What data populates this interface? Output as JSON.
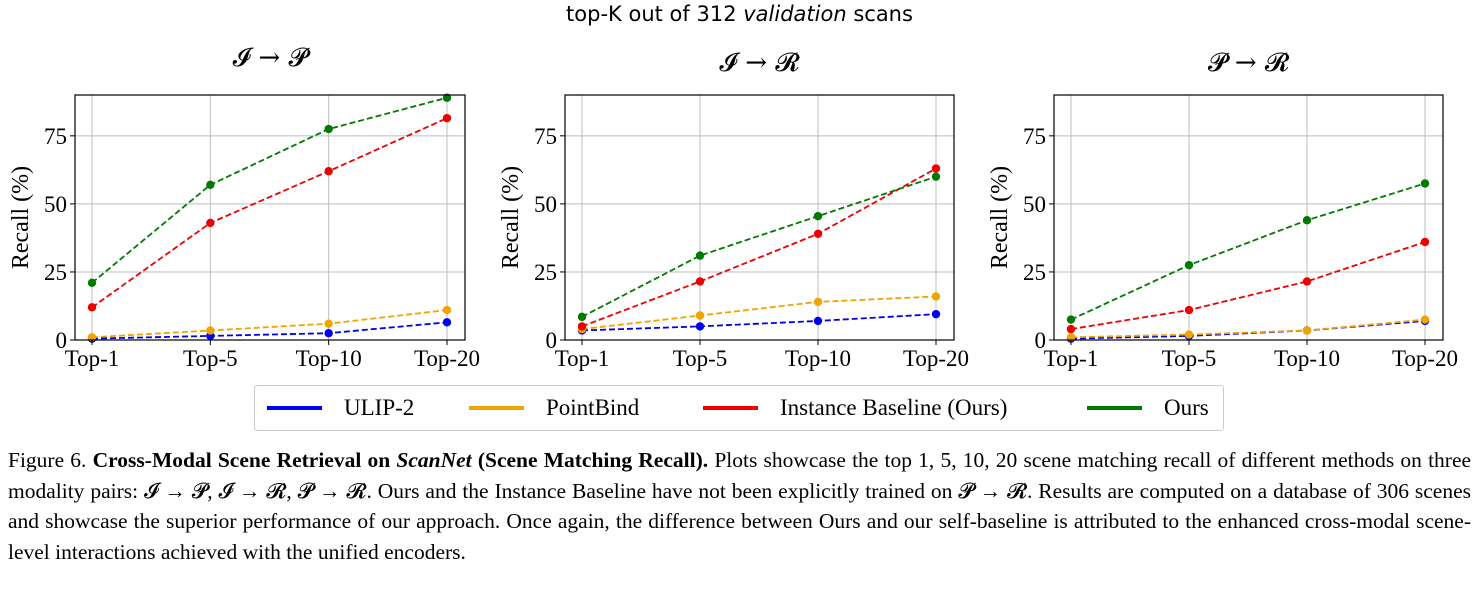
{
  "main_title": {
    "prefix": "top-K out of 312",
    "emph": "validation",
    "suffix": "scans"
  },
  "legend": [
    {
      "label": "ULIP-2",
      "color": "#0000ee"
    },
    {
      "label": "PointBind",
      "color": "#f0a400"
    },
    {
      "label": "Instance Baseline (Ours)",
      "color": "#ee0000"
    },
    {
      "label": "Ours",
      "color": "#007a00"
    }
  ],
  "chart_data": [
    {
      "type": "line",
      "title": "𝓘 → 𝓟",
      "xlabel": "",
      "ylabel": "Recall (%)",
      "categories": [
        "Top-1",
        "Top-5",
        "Top-10",
        "Top-20"
      ],
      "yticks": [
        0,
        25,
        50,
        75
      ],
      "ylim": [
        0,
        90
      ],
      "grid": true,
      "series": [
        {
          "name": "ULIP-2",
          "values": [
            0.5,
            1.5,
            2.5,
            6.5
          ]
        },
        {
          "name": "PointBind",
          "values": [
            1,
            3.5,
            6,
            11
          ]
        },
        {
          "name": "Instance Baseline (Ours)",
          "values": [
            12,
            43,
            62,
            81.5
          ]
        },
        {
          "name": "Ours",
          "values": [
            21,
            57,
            77.5,
            89
          ]
        }
      ]
    },
    {
      "type": "line",
      "title": "𝓘 → 𝓡",
      "xlabel": "",
      "ylabel": "Recall (%)",
      "categories": [
        "Top-1",
        "Top-5",
        "Top-10",
        "Top-20"
      ],
      "yticks": [
        0,
        25,
        50,
        75
      ],
      "ylim": [
        0,
        90
      ],
      "grid": true,
      "series": [
        {
          "name": "ULIP-2",
          "values": [
            3.5,
            5,
            7,
            9.5
          ]
        },
        {
          "name": "PointBind",
          "values": [
            4,
            9,
            14,
            16
          ]
        },
        {
          "name": "Instance Baseline (Ours)",
          "values": [
            5,
            21.5,
            39,
            63
          ]
        },
        {
          "name": "Ours",
          "values": [
            8.5,
            31,
            45.5,
            60
          ]
        }
      ]
    },
    {
      "type": "line",
      "title": "𝓟 → 𝓡",
      "xlabel": "",
      "ylabel": "Recall (%)",
      "categories": [
        "Top-1",
        "Top-5",
        "Top-10",
        "Top-20"
      ],
      "yticks": [
        0,
        25,
        50,
        75
      ],
      "ylim": [
        0,
        90
      ],
      "grid": true,
      "series": [
        {
          "name": "ULIP-2",
          "values": [
            0.5,
            1.5,
            3.5,
            7
          ]
        },
        {
          "name": "PointBind",
          "values": [
            1,
            2,
            3.5,
            7.5
          ]
        },
        {
          "name": "Instance Baseline (Ours)",
          "values": [
            4,
            11,
            21.5,
            36
          ]
        },
        {
          "name": "Ours",
          "values": [
            7.5,
            27.5,
            44,
            57.5
          ]
        }
      ]
    }
  ],
  "caption": {
    "fig": "Figure 6.",
    "bold1": "Cross-Modal Scene Retrieval on",
    "bold_italic": "ScanNet",
    "bold2": "(Scene Matching Recall).",
    "body": "Plots showcase the top 1, 5, 10, 20 scene matching recall of different methods on three modality pairs: 𝓘 → 𝓟, 𝓘 → 𝓡, 𝓟 → 𝓡. Ours and the Instance Baseline have not been explicitly trained on 𝓟 → 𝓡. Results are computed on a database of 306 scenes and showcase the superior performance of our approach. Once again, the difference between Ours and our self-baseline is attributed to the enhanced cross-modal scene-level interactions achieved with the unified encoders."
  }
}
